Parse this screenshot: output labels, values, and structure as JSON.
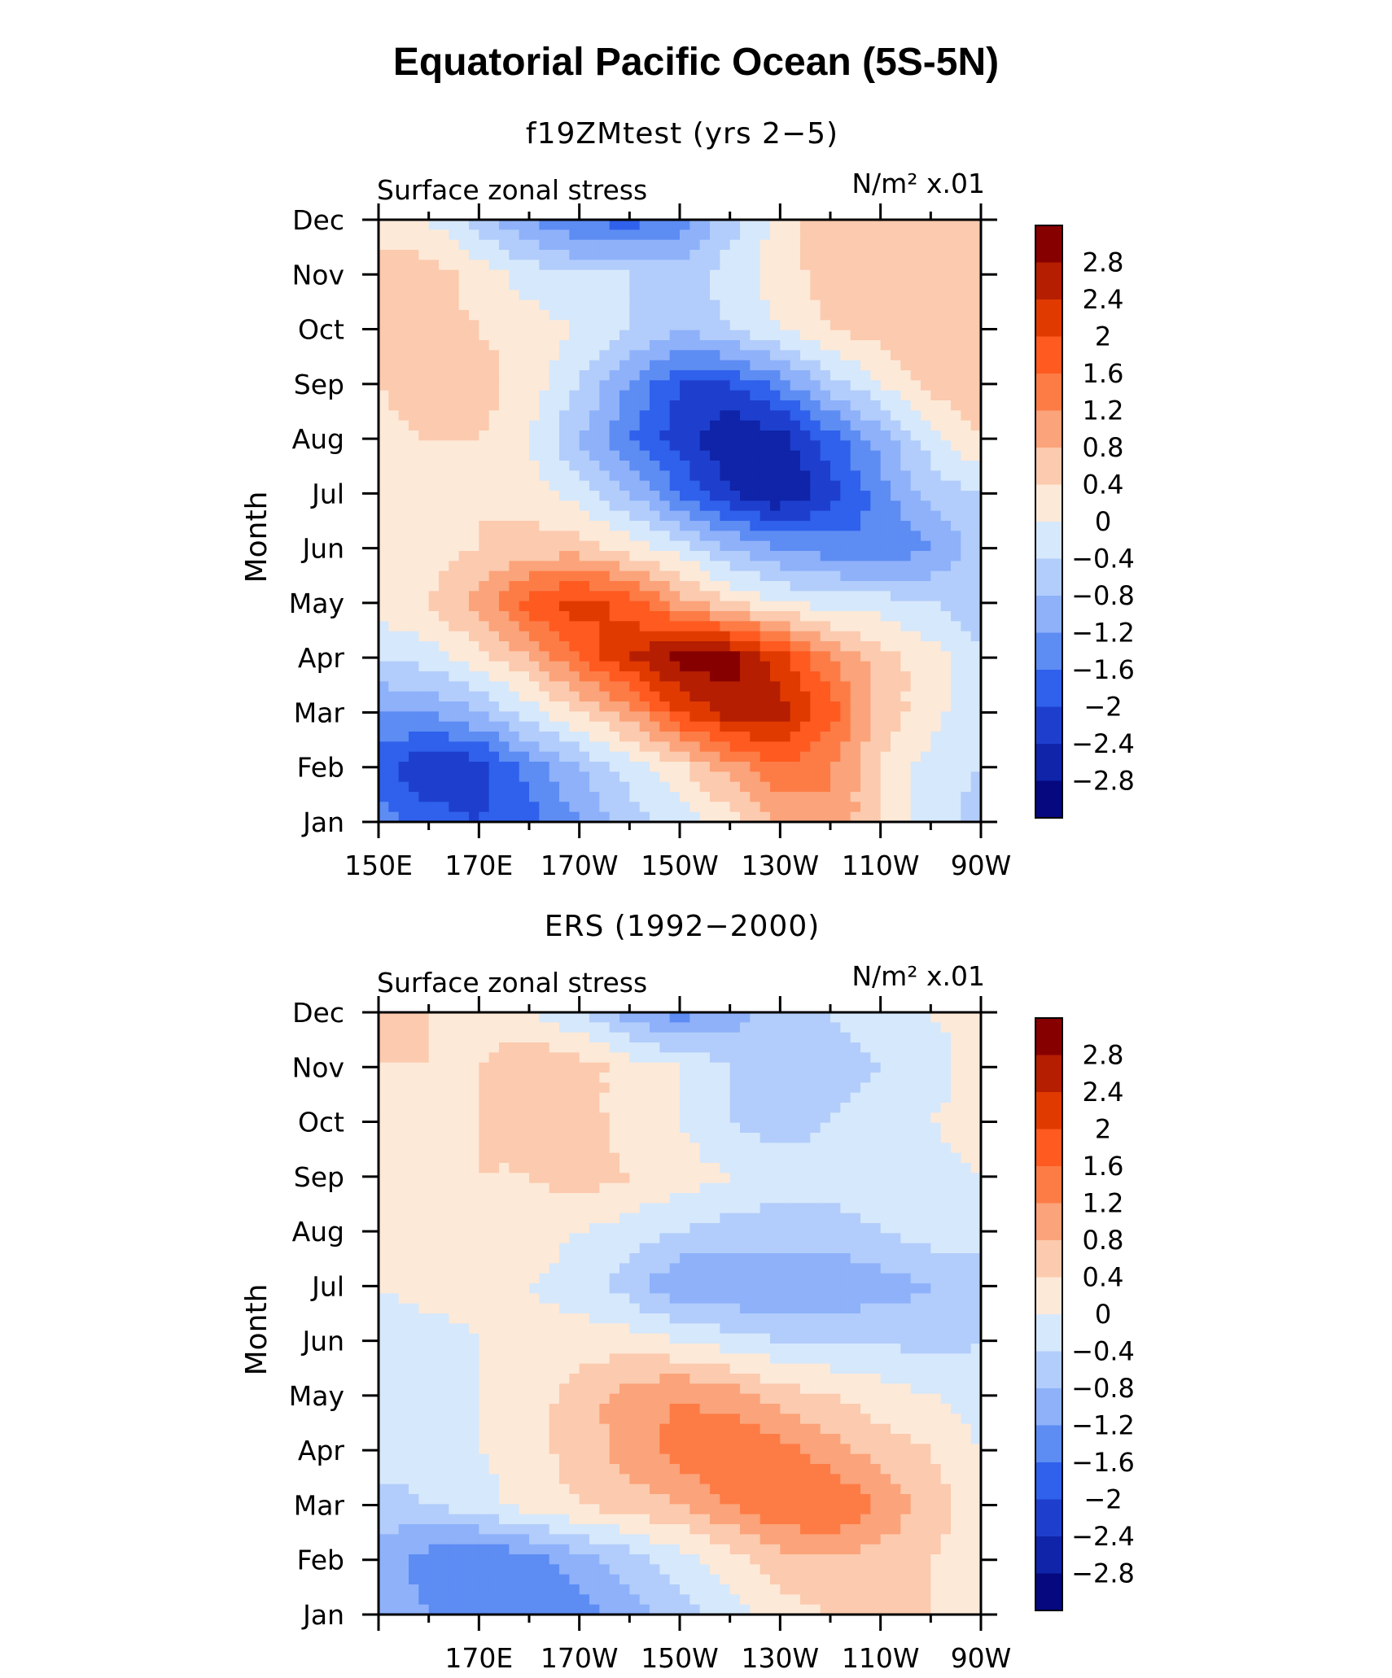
{
  "title": "Equatorial Pacific Ocean (5S-5N)",
  "colorbar": {
    "levels": [
      "2.8",
      "2.4",
      "2",
      "1.6",
      "1.2",
      "0.8",
      "0.4",
      "0",
      "−0.4",
      "−0.8",
      "−1.2",
      "−1.6",
      "−2",
      "−2.4",
      "−2.8"
    ],
    "colors": [
      "#870000",
      "#b51e00",
      "#e03a00",
      "#ff5a20",
      "#fd7c46",
      "#fba37a",
      "#fccaae",
      "#fde9d8",
      "#d6e8fb",
      "#b2cdfb",
      "#8eb1fa",
      "#5d8cf3",
      "#2f61ec",
      "#1e3fce",
      "#0f24a8",
      "#05087e"
    ]
  },
  "chart_data": [
    {
      "type": "heatmap",
      "title": "f19ZMtest (yrs 2−5)",
      "left_label": "Surface zonal stress",
      "units": "N/m² x.01",
      "ylabel": "Month",
      "xlabel": "",
      "x_ticks": [
        "150E",
        "170E",
        "170W",
        "150W",
        "130W",
        "110W",
        "90W"
      ],
      "x_values": [
        150,
        170,
        190,
        210,
        230,
        250,
        270
      ],
      "y_ticks": [
        "Jan",
        "Feb",
        "Mar",
        "Apr",
        "May",
        "Jun",
        "Jul",
        "Aug",
        "Sep",
        "Oct",
        "Nov",
        "Dec"
      ],
      "y_values": [
        1,
        2,
        3,
        4,
        5,
        6,
        7,
        8,
        9,
        10,
        11,
        12
      ],
      "xlim": [
        150,
        270
      ],
      "ylim": [
        1,
        12
      ],
      "z": [
        [
          -1.4,
          -1.8,
          -2.0,
          -1.8,
          -1.2,
          -0.6,
          -0.2,
          0.2,
          0.8,
          1.2,
          0.4,
          -0.2,
          -0.6
        ],
        [
          -1.8,
          -2.4,
          -2.2,
          -1.4,
          -0.8,
          -0.2,
          0.3,
          1.0,
          1.6,
          1.2,
          0.4,
          -0.2,
          -0.4
        ],
        [
          -1.2,
          -1.2,
          -0.8,
          -0.2,
          0.4,
          1.0,
          2.0,
          2.6,
          2.6,
          1.8,
          0.6,
          0.2,
          -0.4
        ],
        [
          -0.4,
          -0.2,
          0.2,
          0.8,
          1.6,
          2.4,
          3.0,
          3.0,
          2.2,
          1.2,
          0.6,
          0.2,
          -0.4
        ],
        [
          0.2,
          0.4,
          1.0,
          1.8,
          2.2,
          1.8,
          1.0,
          0.4,
          0.0,
          -0.2,
          -0.2,
          -0.4,
          -0.6
        ],
        [
          0.4,
          0.2,
          0.4,
          0.6,
          0.6,
          0.2,
          -0.2,
          -0.8,
          -1.2,
          -1.4,
          -1.6,
          -1.2,
          -0.6
        ],
        [
          0.2,
          0.2,
          0.4,
          0.2,
          -0.2,
          -0.8,
          -1.6,
          -2.4,
          -2.8,
          -2.2,
          -1.4,
          -0.6,
          -0.4
        ],
        [
          0.2,
          0.4,
          0.4,
          0.0,
          -0.8,
          -1.6,
          -2.2,
          -2.8,
          -2.6,
          -1.8,
          -1.0,
          -0.2,
          0.4
        ],
        [
          0.4,
          0.8,
          0.6,
          0.2,
          -0.4,
          -1.2,
          -2.0,
          -2.0,
          -1.4,
          -0.6,
          0.0,
          0.6,
          0.8
        ],
        [
          0.6,
          0.6,
          0.4,
          0.2,
          0.0,
          -0.4,
          -0.8,
          -0.4,
          0.0,
          0.4,
          0.6,
          0.8,
          0.8
        ],
        [
          0.6,
          0.6,
          0.2,
          -0.2,
          -0.4,
          -0.4,
          -0.6,
          -0.2,
          0.2,
          0.6,
          0.8,
          0.8,
          0.6
        ],
        [
          0.2,
          0.0,
          -0.6,
          -1.2,
          -1.6,
          -1.8,
          -1.4,
          -0.6,
          0.2,
          0.6,
          0.8,
          0.6,
          0.4
        ]
      ]
    },
    {
      "type": "heatmap",
      "title": "ERS (1992−2000)",
      "left_label": "Surface zonal stress",
      "units": "N/m² x.01",
      "ylabel": "Month",
      "xlabel": "",
      "x_ticks": [
        "170E",
        "170W",
        "150W",
        "130W",
        "110W",
        "90W"
      ],
      "x_values": [
        170,
        190,
        210,
        230,
        250,
        270
      ],
      "y_ticks": [
        "Jan",
        "Feb",
        "Mar",
        "Apr",
        "May",
        "Jun",
        "Jul",
        "Aug",
        "Sep",
        "Oct",
        "Nov",
        "Dec"
      ],
      "y_values": [
        1,
        2,
        3,
        4,
        5,
        6,
        7,
        8,
        9,
        10,
        11,
        12
      ],
      "xlim": [
        150,
        270
      ],
      "ylim": [
        1,
        12
      ],
      "z": [
        [
          -0.8,
          -1.2,
          -1.6,
          -1.6,
          -1.4,
          -1.0,
          -0.6,
          -0.2,
          0.2,
          0.4,
          0.6,
          0.4,
          0.2
        ],
        [
          -1.0,
          -1.4,
          -1.6,
          -1.4,
          -1.0,
          -0.6,
          -0.2,
          0.2,
          0.6,
          0.8,
          0.6,
          0.4,
          0.2
        ],
        [
          -0.6,
          -0.4,
          -0.2,
          0.2,
          0.4,
          0.6,
          0.8,
          1.2,
          1.6,
          1.6,
          1.2,
          0.6,
          0.2
        ],
        [
          -0.2,
          -0.2,
          0.0,
          0.2,
          0.6,
          1.0,
          1.4,
          1.6,
          1.4,
          1.0,
          0.6,
          0.4,
          0.0
        ],
        [
          -0.2,
          -0.2,
          0.0,
          0.2,
          0.6,
          1.0,
          1.2,
          1.0,
          0.6,
          0.4,
          0.2,
          0.0,
          -0.2
        ],
        [
          -0.4,
          -0.2,
          0.0,
          0.2,
          0.2,
          0.2,
          0.0,
          -0.2,
          -0.4,
          -0.4,
          -0.4,
          -0.6,
          -0.4
        ],
        [
          0.0,
          0.2,
          0.2,
          0.0,
          -0.2,
          -0.6,
          -1.2,
          -1.2,
          -1.2,
          -1.2,
          -1.0,
          -0.8,
          -0.6
        ],
        [
          0.2,
          0.2,
          0.2,
          0.2,
          0.0,
          -0.2,
          -0.4,
          -0.6,
          -0.6,
          -0.6,
          -0.4,
          -0.2,
          -0.2
        ],
        [
          0.2,
          0.2,
          0.4,
          0.4,
          0.6,
          0.4,
          0.2,
          0.0,
          -0.2,
          -0.2,
          -0.2,
          -0.2,
          0.0
        ],
        [
          0.2,
          0.2,
          0.4,
          0.4,
          0.6,
          0.2,
          0.0,
          -0.4,
          -0.6,
          -0.4,
          -0.2,
          0.0,
          0.2
        ],
        [
          0.4,
          0.4,
          0.4,
          0.8,
          0.6,
          0.2,
          0.0,
          -0.4,
          -0.6,
          -0.6,
          -0.4,
          -0.2,
          0.2
        ],
        [
          0.6,
          0.4,
          0.2,
          0.0,
          -0.4,
          -1.0,
          -1.4,
          -1.0,
          -0.6,
          -0.4,
          -0.2,
          0.0,
          0.2
        ]
      ]
    }
  ]
}
